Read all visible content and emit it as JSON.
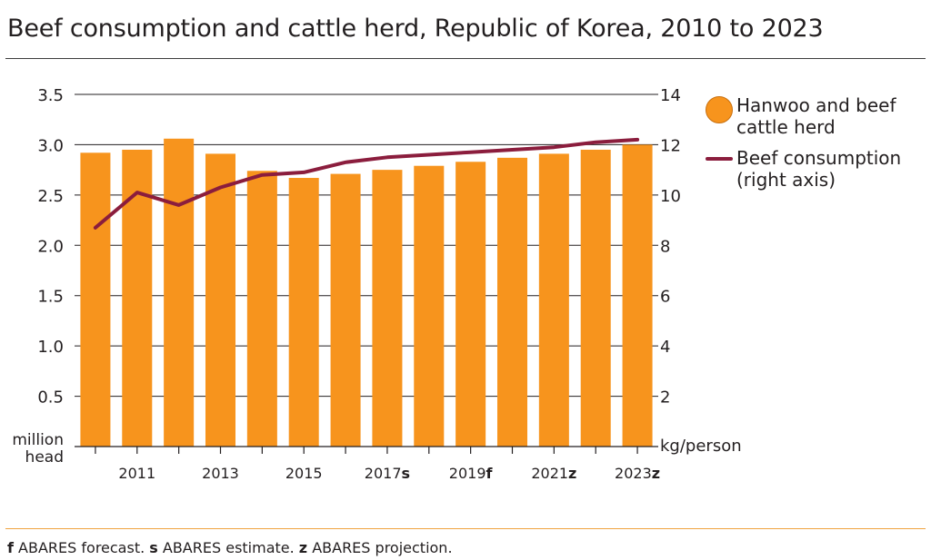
{
  "title": "Beef consumption and cattle herd, Republic of Korea, 2010 to 2023",
  "footnote": {
    "items": [
      {
        "marker": "f",
        "text": " ABARES forecast. "
      },
      {
        "marker": "s",
        "text": " ABARES estimate. "
      },
      {
        "marker": "z",
        "text": " ABARES projection."
      }
    ]
  },
  "legend": {
    "herd_label": "Hanwoo and beef cattle herd",
    "consumption_label": "Beef consumption (right axis)"
  },
  "colors": {
    "bar": "#f7941d",
    "line": "#8b1d3d",
    "axis": "#231f20",
    "grid": "#231f20"
  },
  "chart_data": {
    "type": "bar",
    "title": "Beef consumption and cattle herd, Republic of Korea, 2010 to 2023",
    "categories": [
      "2010",
      "2011",
      "2012",
      "2013",
      "2014",
      "2015",
      "2016",
      "2017",
      "2018",
      "2019",
      "2020",
      "2021",
      "2022",
      "2023"
    ],
    "x_tick_labels": [
      {
        "category": "2011",
        "text": "2011",
        "suffix": ""
      },
      {
        "category": "2013",
        "text": "2013",
        "suffix": ""
      },
      {
        "category": "2015",
        "text": "2015",
        "suffix": ""
      },
      {
        "category": "2017",
        "text": "2017",
        "suffix": "s"
      },
      {
        "category": "2019",
        "text": "2019",
        "suffix": "f"
      },
      {
        "category": "2021",
        "text": "2021",
        "suffix": "z"
      },
      {
        "category": "2023",
        "text": "2023",
        "suffix": "z"
      }
    ],
    "series": [
      {
        "name": "Hanwoo and beef cattle herd",
        "type": "bar",
        "axis": "left",
        "values": [
          2.92,
          2.95,
          3.06,
          2.91,
          2.74,
          2.67,
          2.71,
          2.75,
          2.79,
          2.83,
          2.87,
          2.91,
          2.95,
          3.0
        ]
      },
      {
        "name": "Beef consumption (right axis)",
        "type": "line",
        "axis": "right",
        "values": [
          8.7,
          10.1,
          9.6,
          10.3,
          10.8,
          10.9,
          11.3,
          11.5,
          11.6,
          11.7,
          11.8,
          11.9,
          12.1,
          12.2
        ]
      }
    ],
    "y_left": {
      "label": "million head",
      "ylim": [
        0,
        3.5
      ],
      "ticks": [
        "0.5",
        "1.0",
        "1.5",
        "2.0",
        "2.5",
        "3.0",
        "3.5"
      ]
    },
    "y_right": {
      "label": "kg/person",
      "ylim": [
        0,
        14
      ],
      "ticks": [
        "2",
        "4",
        "6",
        "8",
        "10",
        "12",
        "14"
      ]
    },
    "grid": true,
    "legend_position": "right"
  }
}
